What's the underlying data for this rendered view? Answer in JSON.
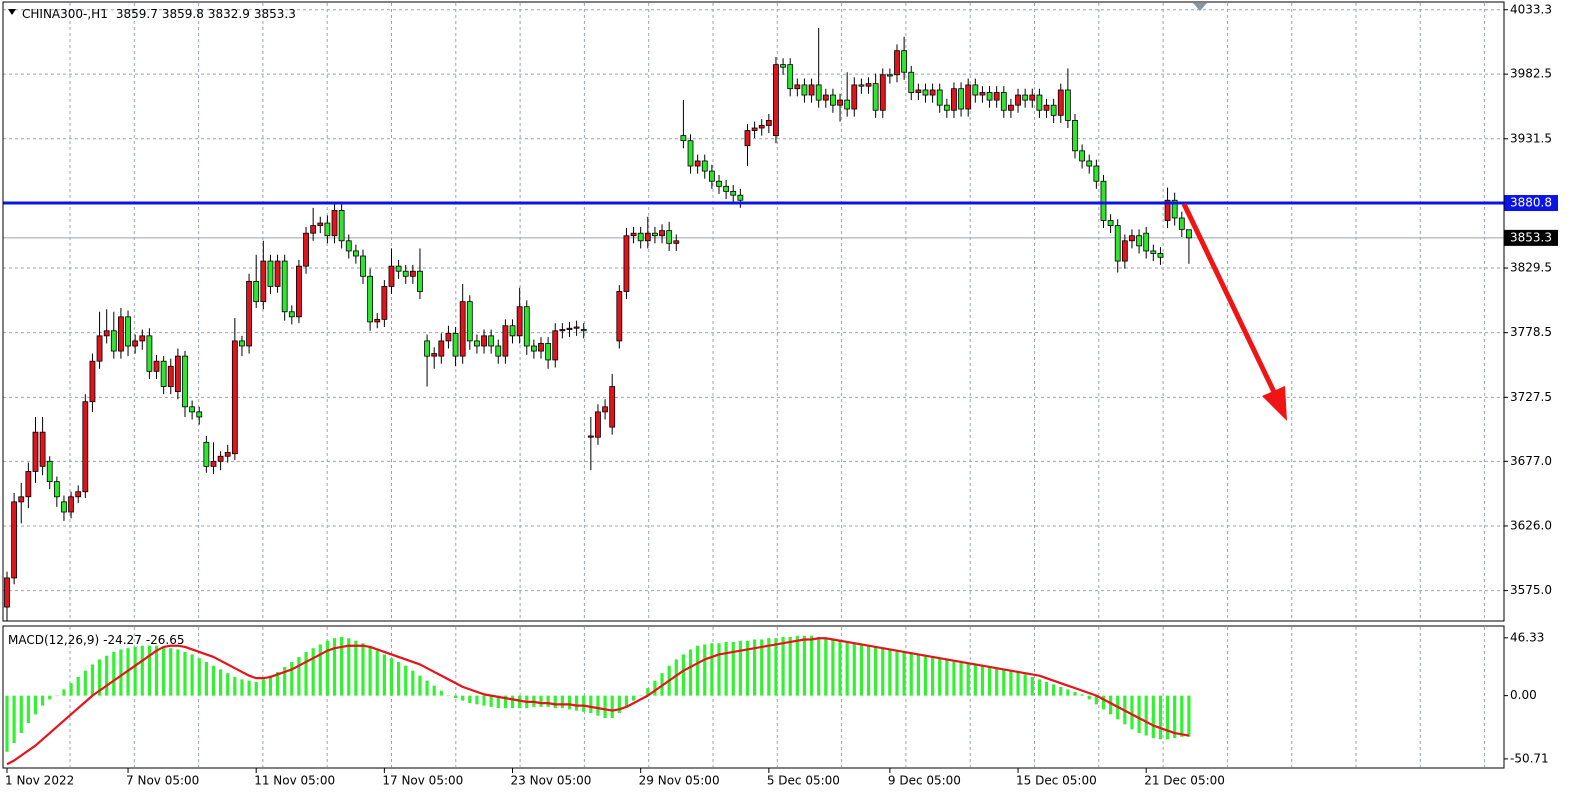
{
  "chart_data": [
    {
      "type": "candlestick",
      "symbol": "CHINA300-,H1",
      "categories": [
        "1 Nov 2022",
        null,
        null,
        null,
        null,
        null,
        null,
        null,
        null,
        null,
        null,
        null,
        null,
        null,
        null,
        null,
        null,
        "7 Nov 05:00",
        null,
        null,
        null,
        null,
        null,
        null,
        null,
        null,
        null,
        null,
        null,
        null,
        null,
        null,
        null,
        null,
        null,
        "11 Nov 05:00",
        null,
        null,
        null,
        null,
        null,
        null,
        null,
        null,
        null,
        null,
        null,
        null,
        null,
        null,
        null,
        null,
        null,
        "17 Nov 05:00",
        null,
        null,
        null,
        null,
        null,
        null,
        null,
        null,
        null,
        null,
        null,
        null,
        null,
        null,
        null,
        null,
        null,
        "23 Nov 05:00",
        null,
        null,
        null,
        null,
        null,
        null,
        null,
        null,
        null,
        null,
        null,
        null,
        null,
        null,
        null,
        null,
        null,
        "29 Nov 05:00",
        null,
        null,
        null,
        null,
        null,
        null,
        null,
        null,
        null,
        null,
        null,
        null,
        null,
        null,
        null,
        null,
        null,
        "5 Dec 05:00",
        null,
        null,
        null,
        null,
        null,
        null,
        null,
        null,
        null,
        null,
        null,
        null,
        null,
        null,
        null,
        null,
        "9 Dec 05:00",
        null,
        null,
        null,
        null,
        null,
        null,
        null,
        null,
        null,
        null,
        null,
        null,
        null,
        null,
        null,
        null,
        null,
        "15 Dec 05:00",
        null,
        null,
        null,
        null,
        null,
        null,
        null,
        null,
        null,
        null,
        null,
        null,
        null,
        null,
        null,
        null,
        null,
        "21 Dec 05:00",
        null,
        null,
        null,
        null,
        null,
        null
      ],
      "open": [
        3562,
        3585,
        3645,
        3649,
        3669,
        3673,
        3677,
        3661,
        3645,
        3637,
        3649,
        3653,
        3724,
        3756,
        3776,
        3780,
        3764,
        3791,
        3768,
        3772,
        3776,
        3748,
        3756,
        3736,
        3732,
        3760,
        3720,
        3716,
        3692,
        3673,
        3677,
        3681,
        3683,
        3772,
        3768,
        3819,
        3803,
        3835,
        3815,
        3835,
        3795,
        3791,
        3831,
        3857,
        3863,
        3865,
        3855,
        3875,
        3851,
        3843,
        3839,
        3823,
        3787,
        3789,
        3815,
        3831,
        3827,
        3823,
        3827,
        3772,
        3760,
        3760,
        3772,
        3778,
        3760,
        3803,
        3772,
        3768,
        3776,
        3768,
        3760,
        3784,
        3776,
        3799,
        3768,
        3764,
        3770,
        3757,
        3780,
        3781,
        3782,
        3781,
        3696,
        3696,
        3716,
        3704,
        3772,
        3811,
        3855,
        3857,
        3851,
        3857,
        3855,
        3859,
        3849,
        3934,
        3930,
        3910,
        3914,
        3906,
        3898,
        3894,
        3890,
        3887,
        3926,
        3938,
        3940,
        3942,
        3934,
        3990,
        3990,
        3971,
        3974,
        3966,
        3974,
        3962,
        3966,
        3958,
        3962,
        3955,
        3974,
        3973,
        3975,
        3954,
        3982,
        3982,
        4001,
        3984,
        3968,
        3970,
        3966,
        3970,
        3958,
        3954,
        3971,
        3955,
        3974,
        3966,
        3968,
        3962,
        3968,
        3954,
        3958,
        3966,
        3962,
        3966,
        3954,
        3958,
        3950,
        3970,
        3946,
        3922,
        3914,
        3910,
        3898,
        3867,
        3863,
        3835,
        3851,
        3855,
        3857,
        3843,
        3841,
        3867,
        3883,
        3869,
        3859.7
      ],
      "high": [
        3590,
        3652,
        3660,
        3676,
        3712,
        3712,
        3681,
        3665,
        3650,
        3653,
        3658,
        3730,
        3762,
        3795,
        3797,
        3795,
        3798,
        3796,
        3777,
        3781,
        3782,
        3761,
        3760,
        3758,
        3766,
        3764,
        3725,
        3720,
        3697,
        3692,
        3685,
        3690,
        3790,
        3776,
        3825,
        3840,
        3851,
        3840,
        3840,
        3840,
        3800,
        3836,
        3862,
        3877,
        3870,
        3871,
        3880,
        3880,
        3856,
        3848,
        3844,
        3829,
        3794,
        3820,
        3845,
        3836,
        3832,
        3832,
        3845,
        3777,
        3767,
        3778,
        3784,
        3783,
        3817,
        3808,
        3777,
        3781,
        3781,
        3773,
        3789,
        3789,
        3814,
        3804,
        3773,
        3775,
        3775,
        3786,
        3786,
        3787,
        3788,
        3786,
        3712,
        3722,
        3726,
        3746,
        3816,
        3861,
        3862,
        3862,
        3870,
        3862,
        3864,
        3866,
        3856,
        3962,
        3935,
        3919,
        3919,
        3911,
        3903,
        3899,
        3895,
        3892,
        3943,
        3945,
        3947,
        3951,
        3996,
        3995,
        3995,
        3979,
        3979,
        3979,
        4019,
        3971,
        3971,
        3967,
        3984,
        3980,
        3979,
        3980,
        3983,
        3987,
        3987,
        4006,
        4012,
        3989,
        3975,
        3975,
        3975,
        3975,
        3963,
        3976,
        3976,
        3979,
        3979,
        3973,
        3973,
        3973,
        3973,
        3963,
        3971,
        3971,
        3971,
        3971,
        3963,
        3963,
        3975,
        3987,
        3951,
        3927,
        3919,
        3915,
        3903,
        3872,
        3868,
        3856,
        3860,
        3860,
        3862,
        3848,
        3846,
        3893,
        3889,
        3874,
        3859.8
      ],
      "low": [
        3551,
        3580,
        3628,
        3640,
        3660,
        3666,
        3655,
        3641,
        3630,
        3632,
        3644,
        3648,
        3716,
        3750,
        3770,
        3758,
        3758,
        3760,
        3762,
        3765,
        3742,
        3742,
        3730,
        3730,
        3726,
        3712,
        3710,
        3706,
        3668,
        3667,
        3670,
        3676,
        3678,
        3760,
        3762,
        3798,
        3797,
        3809,
        3810,
        3788,
        3785,
        3786,
        3825,
        3851,
        3857,
        3849,
        3849,
        3845,
        3837,
        3833,
        3817,
        3780,
        3782,
        3783,
        3809,
        3821,
        3817,
        3817,
        3805,
        3736,
        3750,
        3754,
        3766,
        3752,
        3754,
        3765,
        3762,
        3762,
        3762,
        3754,
        3754,
        3770,
        3770,
        3761,
        3758,
        3758,
        3750,
        3751,
        3774,
        3775,
        3776,
        3774,
        3670,
        3690,
        3710,
        3698,
        3766,
        3805,
        3849,
        3845,
        3845,
        3849,
        3849,
        3843,
        3843,
        3924,
        3904,
        3904,
        3900,
        3892,
        3888,
        3884,
        3881,
        3877,
        3910,
        3932,
        3934,
        3936,
        3928,
        3982,
        3965,
        3965,
        3960,
        3960,
        3956,
        3956,
        3952,
        3945,
        3949,
        3949,
        3967,
        3967,
        3948,
        3948,
        3975,
        3976,
        3978,
        3962,
        3962,
        3960,
        3960,
        3952,
        3948,
        3948,
        3949,
        3949,
        3960,
        3960,
        3956,
        3956,
        3948,
        3948,
        3952,
        3956,
        3956,
        3948,
        3948,
        3944,
        3944,
        3940,
        3916,
        3908,
        3904,
        3892,
        3861,
        3857,
        3826,
        3829,
        3845,
        3841,
        3837,
        3835,
        3832,
        3861,
        3863,
        3854,
        3832.9
      ],
      "close": [
        3585,
        3645,
        3649,
        3669,
        3700,
        3700,
        3661,
        3649,
        3637,
        3649,
        3653,
        3724,
        3756,
        3776,
        3780,
        3764,
        3791,
        3768,
        3772,
        3776,
        3748,
        3756,
        3736,
        3752,
        3760,
        3720,
        3716,
        3712,
        3673,
        3677,
        3681,
        3684,
        3772,
        3768,
        3819,
        3803,
        3835,
        3815,
        3835,
        3795,
        3791,
        3831,
        3857,
        3863,
        3865,
        3855,
        3875,
        3851,
        3843,
        3839,
        3823,
        3787,
        3789,
        3815,
        3831,
        3827,
        3823,
        3827,
        3811,
        3760,
        3762,
        3772,
        3778,
        3760,
        3803,
        3772,
        3768,
        3776,
        3768,
        3760,
        3784,
        3776,
        3799,
        3768,
        3764,
        3770,
        3757,
        3780,
        3781,
        3782,
        3783,
        3780,
        3697,
        3716,
        3720,
        3736,
        3811,
        3855,
        3857,
        3851,
        3857,
        3855,
        3859,
        3849,
        3851,
        3930,
        3910,
        3914,
        3906,
        3898,
        3894,
        3890,
        3887,
        3883,
        3938,
        3940,
        3942,
        3946,
        3990,
        3988,
        3971,
        3974,
        3966,
        3974,
        3962,
        3966,
        3958,
        3962,
        3955,
        3974,
        3973,
        3975,
        3954,
        3982,
        3981,
        4001,
        3984,
        3968,
        3970,
        3966,
        3970,
        3958,
        3954,
        3971,
        3955,
        3974,
        3966,
        3968,
        3962,
        3968,
        3954,
        3958,
        3966,
        3962,
        3966,
        3954,
        3958,
        3950,
        3970,
        3946,
        3922,
        3914,
        3910,
        3898,
        3867,
        3863,
        3835,
        3851,
        3855,
        3847,
        3843,
        3841,
        3838,
        3883,
        3869,
        3860,
        3853.3
      ],
      "up_color": "#e0141c",
      "down_color": "#2ee62e",
      "level": 3880.8,
      "level_color": "#0a14e6",
      "ylim": [
        3551,
        4041
      ],
      "yticks": [
        4033.3,
        3982.5,
        3931.5,
        3880.8,
        3829.5,
        3778.5,
        3727.5,
        {
          "value": 3677,
          "label": "3677.0"
        },
        {
          "value": 3626,
          "label": "3626.0"
        },
        {
          "value": 3575,
          "label": "3575.0"
        }
      ],
      "grid": true
    },
    {
      "type": "macd",
      "label": "MACD(12,26,9)",
      "macd_value": -24.27,
      "signal_value": -26.65,
      "series": [
        {
          "style": "histogram",
          "color": "#33f033",
          "values": [
            -45,
            -38,
            -30,
            -22,
            -15,
            -8,
            -3,
            0,
            5,
            10,
            15,
            20,
            25,
            29,
            32,
            35,
            37,
            38,
            39,
            40,
            40,
            40,
            39,
            38,
            37,
            35,
            33,
            30,
            27,
            24,
            21,
            18,
            15,
            13,
            12,
            11,
            13,
            16,
            19,
            23,
            27,
            31,
            35,
            38,
            41,
            44,
            46,
            47,
            46,
            44,
            42,
            39,
            36,
            33,
            30,
            27,
            24,
            20,
            16,
            12,
            8,
            4,
            0,
            -2,
            -4,
            -6,
            -7,
            -8,
            -9,
            -10,
            -10,
            -10,
            -10,
            -10,
            -9,
            -9,
            -9,
            -10,
            -10,
            -11,
            -12,
            -13,
            -14,
            -16,
            -18,
            -18,
            -14,
            -9,
            -4,
            0,
            6,
            12,
            18,
            24,
            29,
            33,
            37,
            40,
            41,
            42,
            42,
            43,
            43,
            44,
            44,
            45,
            45,
            46,
            46,
            47,
            47,
            48,
            48,
            48,
            47,
            46,
            45,
            44,
            43,
            42,
            41,
            40,
            39,
            38,
            37,
            36,
            35,
            34,
            33,
            32,
            31,
            30,
            29,
            28,
            27,
            26,
            25,
            24,
            23,
            22,
            21,
            20,
            19,
            17,
            15,
            13,
            11,
            9,
            7,
            5,
            3,
            1,
            -3,
            -7,
            -11,
            -15,
            -19,
            -23,
            -27,
            -30,
            -32,
            -34,
            -35,
            -35,
            -34,
            -33,
            -33
          ]
        },
        {
          "style": "line",
          "color": "#e8121a",
          "values": [
            -55,
            -52,
            -48,
            -44,
            -40,
            -35,
            -30,
            -25,
            -20,
            -15,
            -10,
            -5,
            0,
            4,
            8,
            12,
            16,
            20,
            24,
            28,
            32,
            36,
            39,
            40,
            40,
            39,
            37,
            35,
            33,
            31,
            28,
            25,
            22,
            19,
            16,
            14,
            14,
            15,
            17,
            19,
            21,
            24,
            27,
            30,
            33,
            36,
            38,
            39,
            40,
            40,
            40,
            39,
            37,
            35,
            33,
            31,
            29,
            27,
            25,
            22,
            19,
            16,
            13,
            10,
            7,
            5,
            3,
            1,
            0,
            -1,
            -2,
            -3,
            -4,
            -5,
            -5,
            -6,
            -6,
            -7,
            -7,
            -7,
            -8,
            -8,
            -9,
            -10,
            -11,
            -12,
            -11,
            -9,
            -6,
            -3,
            0,
            4,
            8,
            12,
            16,
            20,
            23,
            26,
            29,
            31,
            33,
            34,
            35,
            36,
            37,
            38,
            39,
            40,
            41,
            42,
            43,
            44,
            45,
            45,
            46,
            46,
            45,
            44,
            43,
            42,
            41,
            40,
            39,
            38,
            37,
            36,
            35,
            34,
            33,
            32,
            31,
            30,
            29,
            28,
            27,
            26,
            25,
            24,
            23,
            22,
            21,
            20,
            19,
            18,
            17,
            16,
            14,
            12,
            10,
            8,
            6,
            4,
            2,
            0,
            -3,
            -6,
            -9,
            -12,
            -15,
            -18,
            -21,
            -24,
            -26,
            -28,
            -30,
            -31,
            -32
          ]
        }
      ],
      "ylim": [
        -58,
        55
      ],
      "yticks": [
        46.33,
        {
          "value": 0,
          "label": "0.00"
        },
        -50.71
      ],
      "grid": false
    }
  ]
}
